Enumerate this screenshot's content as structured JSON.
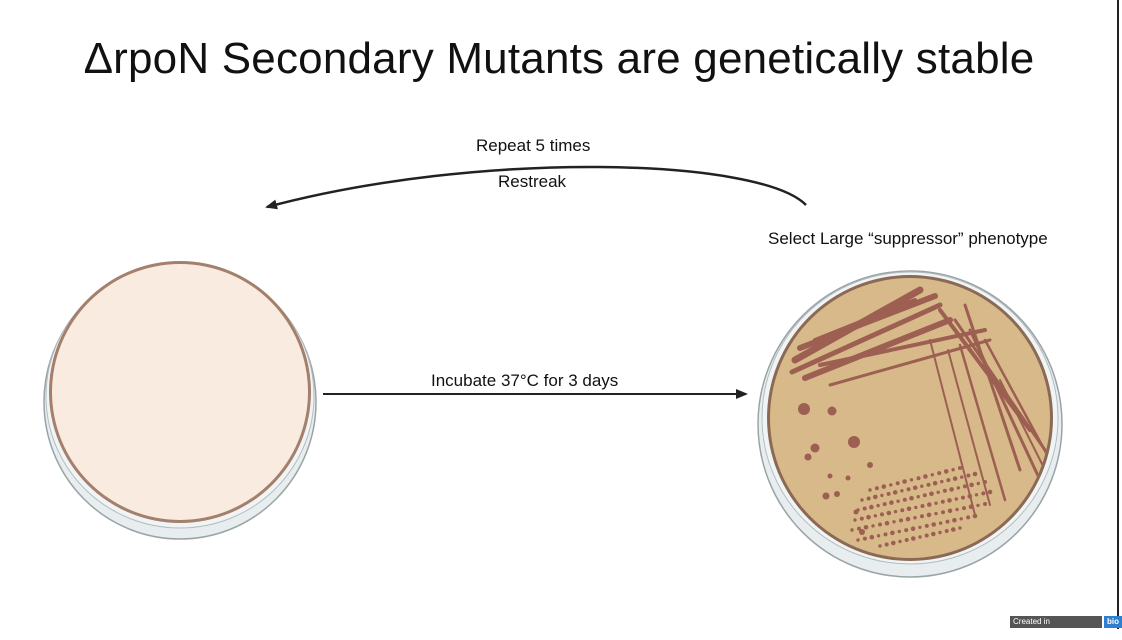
{
  "slide": {
    "title": "ΔrpoN Secondary Mutants are genetically stable"
  },
  "labels": {
    "repeat": "Repeat 5 times",
    "restreak": "Restreak",
    "select": "Select Large “suppressor” phenotype",
    "incubate": "Incubate 37°C for 3 days"
  },
  "badge": {
    "prefix": "Created in",
    "brand": "BioRender.com",
    "mark": "bio"
  },
  "colors": {
    "blank_agar": "#f9ebe0",
    "grown_agar": "#d7b98a",
    "colonies": "#9c5f52",
    "arrow": "#222222"
  },
  "icons": {
    "left_plate": "petri-dish-blank",
    "right_plate": "petri-dish-streaked",
    "incubate_arrow": "arrow-right",
    "restreak_arrow": "curved-arrow-left"
  }
}
